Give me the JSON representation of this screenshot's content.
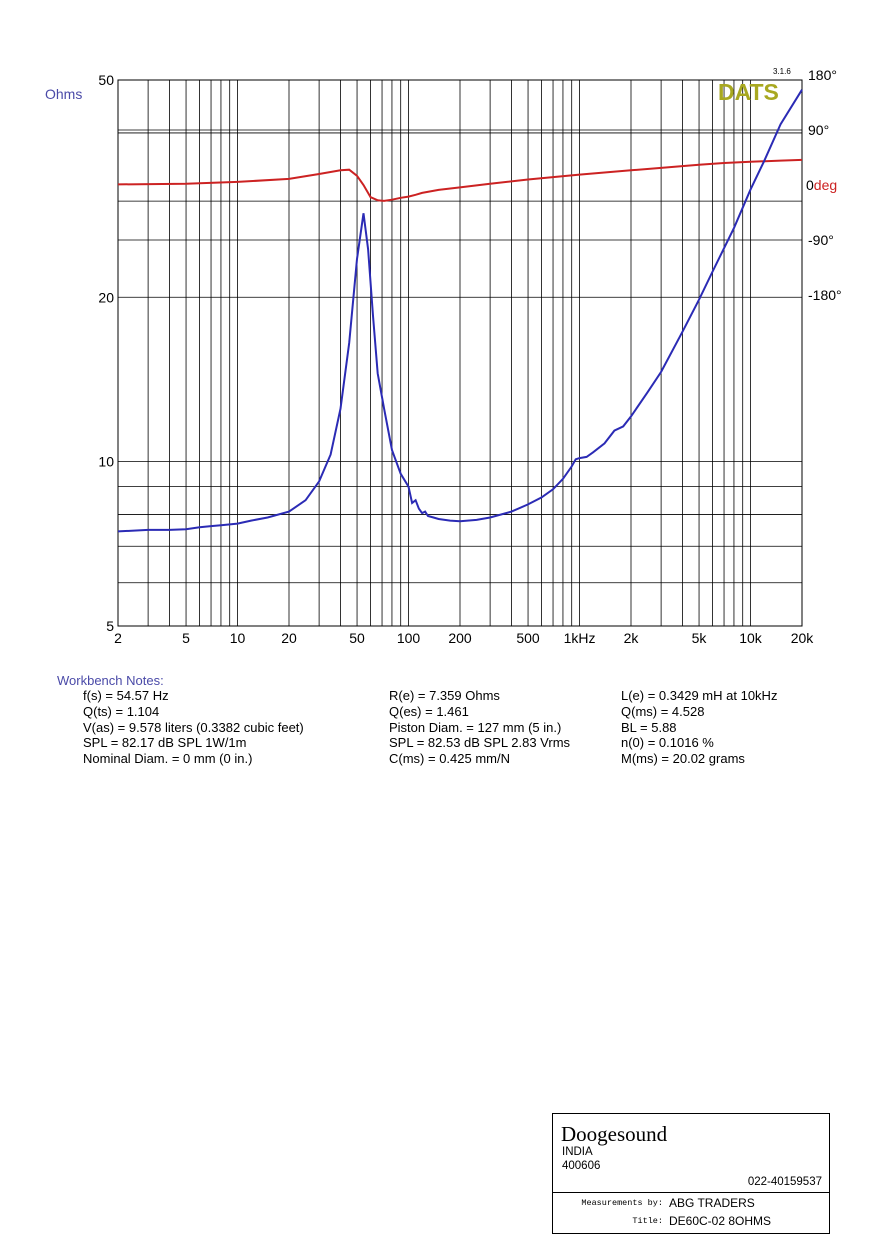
{
  "chart_data": {
    "type": "line",
    "x_scale": "log",
    "y_scale": "log",
    "xlim": [
      2,
      20000
    ],
    "ylim": [
      5,
      50
    ],
    "y2lim": [
      -180,
      180
    ],
    "grid": true,
    "ylabel": "Ohms",
    "y2label_prefix": "0",
    "y2label": "deg",
    "logo": "DATS",
    "version": "3.1.6",
    "x_ticks": [
      {
        "v": 2,
        "label": "2"
      },
      {
        "v": 5,
        "label": "5"
      },
      {
        "v": 10,
        "label": "10"
      },
      {
        "v": 20,
        "label": "20"
      },
      {
        "v": 50,
        "label": "50"
      },
      {
        "v": 100,
        "label": "100"
      },
      {
        "v": 200,
        "label": "200"
      },
      {
        "v": 500,
        "label": "500"
      },
      {
        "v": 1000,
        "label": "1kHz"
      },
      {
        "v": 2000,
        "label": "2k"
      },
      {
        "v": 5000,
        "label": "5k"
      },
      {
        "v": 10000,
        "label": "10k"
      },
      {
        "v": 20000,
        "label": "20k"
      }
    ],
    "y_ticks": [
      {
        "v": 50,
        "label": "50"
      },
      {
        "v": 20,
        "label": "20"
      },
      {
        "v": 10,
        "label": "10"
      },
      {
        "v": 5,
        "label": "5"
      }
    ],
    "y2_ticks": [
      {
        "v": 180,
        "label": "180°"
      },
      {
        "v": 90,
        "label": "90°"
      },
      {
        "v": -90,
        "label": "-90°"
      },
      {
        "v": -180,
        "label": "-180°"
      }
    ],
    "colors": {
      "impedance": "#2b2bb5",
      "phase": "#cc2222",
      "axis_label": "#4a4aa8",
      "deg_label": "#cc2222",
      "logo": "#a8a820"
    },
    "series": [
      {
        "key": "impedance",
        "axis": "left",
        "points": [
          [
            2,
            7.45
          ],
          [
            3,
            7.5
          ],
          [
            4,
            7.5
          ],
          [
            5,
            7.52
          ],
          [
            6,
            7.58
          ],
          [
            7,
            7.62
          ],
          [
            8,
            7.65
          ],
          [
            10,
            7.7
          ],
          [
            12,
            7.8
          ],
          [
            15,
            7.9
          ],
          [
            20,
            8.1
          ],
          [
            25,
            8.5
          ],
          [
            30,
            9.2
          ],
          [
            35,
            10.3
          ],
          [
            40,
            12.5
          ],
          [
            45,
            16.5
          ],
          [
            50,
            23.5
          ],
          [
            54.57,
            28.5
          ],
          [
            58,
            24.5
          ],
          [
            62,
            18.5
          ],
          [
            66,
            14.5
          ],
          [
            72,
            12.5
          ],
          [
            80,
            10.5
          ],
          [
            90,
            9.5
          ],
          [
            100,
            9.0
          ],
          [
            105,
            8.4
          ],
          [
            110,
            8.5
          ],
          [
            115,
            8.2
          ],
          [
            120,
            8.05
          ],
          [
            125,
            8.1
          ],
          [
            130,
            7.95
          ],
          [
            140,
            7.9
          ],
          [
            150,
            7.85
          ],
          [
            175,
            7.8
          ],
          [
            200,
            7.78
          ],
          [
            250,
            7.82
          ],
          [
            300,
            7.9
          ],
          [
            400,
            8.1
          ],
          [
            500,
            8.35
          ],
          [
            600,
            8.6
          ],
          [
            700,
            8.9
          ],
          [
            800,
            9.3
          ],
          [
            900,
            9.8
          ],
          [
            950,
            10.1
          ],
          [
            1000,
            10.15
          ],
          [
            1100,
            10.2
          ],
          [
            1200,
            10.4
          ],
          [
            1400,
            10.8
          ],
          [
            1600,
            11.4
          ],
          [
            1800,
            11.6
          ],
          [
            2000,
            12.1
          ],
          [
            2500,
            13.4
          ],
          [
            3000,
            14.6
          ],
          [
            4000,
            17.3
          ],
          [
            5000,
            19.8
          ],
          [
            6000,
            22.3
          ],
          [
            8000,
            26.8
          ],
          [
            10000,
            31.5
          ],
          [
            12000,
            35.5
          ],
          [
            15000,
            41.5
          ],
          [
            20000,
            48
          ]
        ]
      },
      {
        "key": "phase",
        "axis": "right",
        "points": [
          [
            2,
            1
          ],
          [
            5,
            2
          ],
          [
            10,
            5
          ],
          [
            20,
            10
          ],
          [
            30,
            18
          ],
          [
            40,
            24
          ],
          [
            45,
            25
          ],
          [
            50,
            15
          ],
          [
            54.57,
            0
          ],
          [
            60,
            -20
          ],
          [
            66,
            -25
          ],
          [
            72,
            -26
          ],
          [
            80,
            -24
          ],
          [
            90,
            -21
          ],
          [
            100,
            -19
          ],
          [
            110,
            -16
          ],
          [
            120,
            -13
          ],
          [
            150,
            -8
          ],
          [
            200,
            -4
          ],
          [
            300,
            2
          ],
          [
            500,
            9
          ],
          [
            700,
            13
          ],
          [
            1000,
            17
          ],
          [
            2000,
            24
          ],
          [
            3000,
            28
          ],
          [
            5000,
            33
          ],
          [
            7000,
            36
          ],
          [
            10000,
            38
          ],
          [
            15000,
            40
          ],
          [
            20000,
            41
          ]
        ]
      }
    ]
  },
  "notes": {
    "title": "Workbench Notes:",
    "col1": [
      "f(s) = 54.57 Hz",
      "Q(ts) = 1.104",
      "V(as) = 9.578 liters  (0.3382 cubic feet)",
      "SPL = 82.17 dB SPL 1W/1m",
      "Nominal Diam. = 0 mm (0 in.)"
    ],
    "col2": [
      "R(e) = 7.359 Ohms",
      "Q(es) = 1.461",
      "Piston Diam. = 127 mm (5 in.)",
      "SPL = 82.53 dB SPL 2.83 Vrms",
      "C(ms) = 0.425 mm/N"
    ],
    "col3": [
      "L(e) = 0.3429 mH at 10kHz",
      "Q(ms) = 4.528",
      "BL = 5.88",
      "n(0) = 0.1016 %",
      "M(ms) = 20.02 grams"
    ]
  },
  "titleblock": {
    "company": "Doogesound",
    "address_line1": "INDIA",
    "address_line2": "400606",
    "phone": "022-40159537",
    "measured_by_label": "Measurements by:",
    "measured_by": "ABG TRADERS",
    "title_label": "Title:",
    "title": "DE60C-02 8OHMS"
  }
}
